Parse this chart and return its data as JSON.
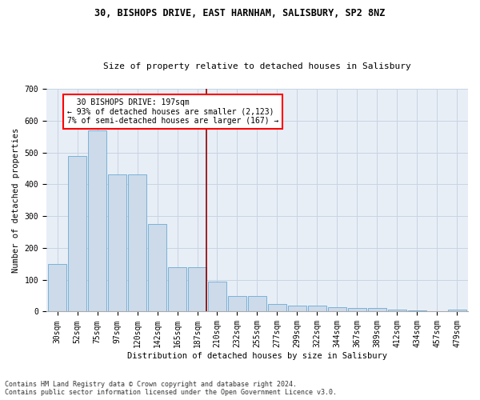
{
  "title1": "30, BISHOPS DRIVE, EAST HARNHAM, SALISBURY, SP2 8NZ",
  "title2": "Size of property relative to detached houses in Salisbury",
  "xlabel": "Distribution of detached houses by size in Salisbury",
  "ylabel": "Number of detached properties",
  "footer1": "Contains HM Land Registry data © Crown copyright and database right 2024.",
  "footer2": "Contains public sector information licensed under the Open Government Licence v3.0.",
  "annotation_line1": "  30 BISHOPS DRIVE: 197sqm",
  "annotation_line2": "← 93% of detached houses are smaller (2,123)",
  "annotation_line3": "7% of semi-detached houses are larger (167) →",
  "bar_color": "#ccdaea",
  "bar_edge_color": "#6aaad4",
  "vline_color": "#8b0000",
  "grid_color": "#c8d4e4",
  "bg_color": "#e8eef6",
  "categories": [
    "30sqm",
    "52sqm",
    "75sqm",
    "97sqm",
    "120sqm",
    "142sqm",
    "165sqm",
    "187sqm",
    "210sqm",
    "232sqm",
    "255sqm",
    "277sqm",
    "299sqm",
    "322sqm",
    "344sqm",
    "367sqm",
    "389sqm",
    "412sqm",
    "434sqm",
    "457sqm",
    "479sqm"
  ],
  "values": [
    150,
    490,
    570,
    430,
    430,
    275,
    140,
    140,
    95,
    50,
    50,
    25,
    20,
    20,
    15,
    10,
    10,
    5,
    3,
    2,
    5
  ],
  "ylim": [
    0,
    700
  ],
  "yticks": [
    0,
    100,
    200,
    300,
    400,
    500,
    600,
    700
  ],
  "vline_x_index": 7,
  "title1_fontsize": 8.5,
  "title2_fontsize": 8,
  "axis_label_fontsize": 7.5,
  "tick_fontsize": 7,
  "footer_fontsize": 6,
  "annotation_fontsize": 7
}
